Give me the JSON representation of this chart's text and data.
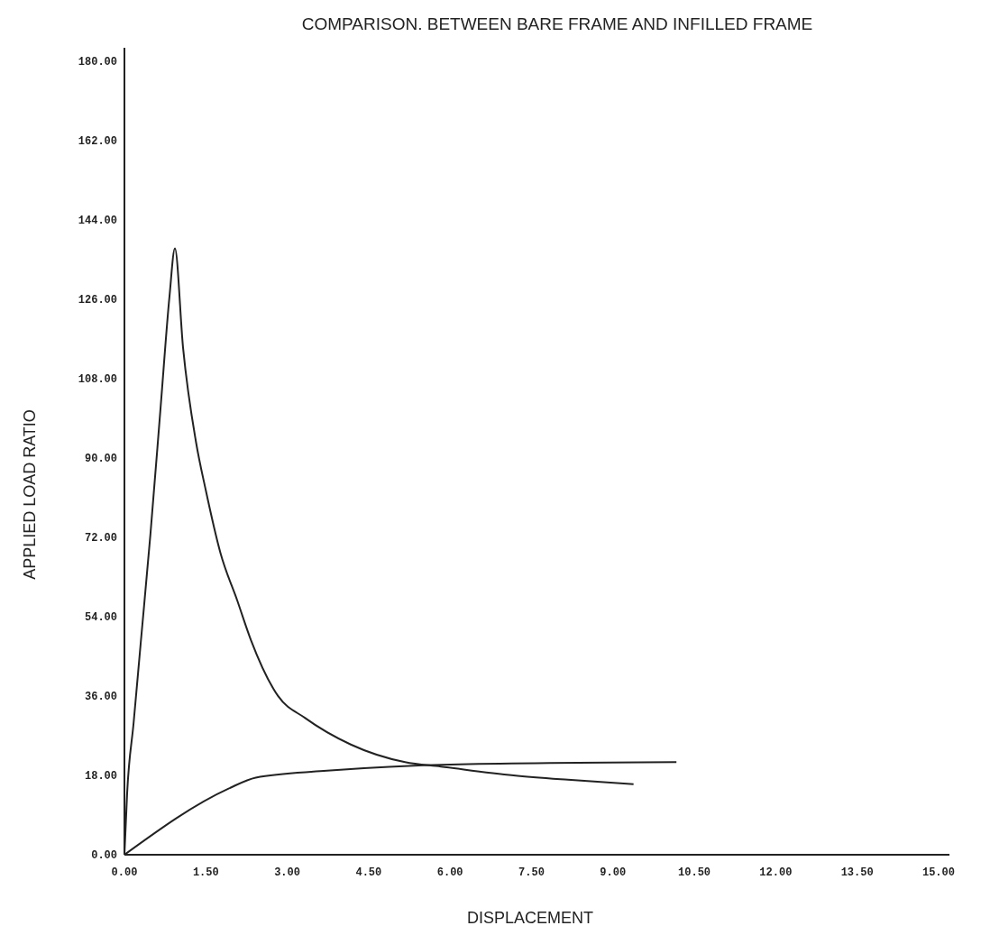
{
  "chart_data": {
    "type": "line",
    "title": "COMPARISON. BETWEEN BARE FRAME AND INFILLED FRAME",
    "xlabel": "DISPLACEMENT",
    "ylabel": "APPLIED LOAD RATIO",
    "series": [
      {
        "color": "#222222",
        "x": [
          0,
          0.05,
          0.17,
          0.3,
          0.48,
          0.67,
          0.83,
          0.93,
          1.08,
          1.32,
          1.5,
          1.77,
          2.08,
          2.33,
          2.83,
          3.33,
          4.17,
          5.17,
          5.83,
          7.17,
          8.17,
          9.38
        ],
        "values": [
          0,
          14,
          30,
          48,
          72.8,
          102,
          126.6,
          137.5,
          115,
          93.5,
          82.6,
          68.4,
          57.6,
          48.7,
          36,
          31,
          25,
          21,
          20,
          18,
          17,
          16
        ]
      },
      {
        "color": "#222222",
        "x": [
          0,
          1.92,
          2.42,
          3.67,
          6.17,
          10.17
        ],
        "values": [
          0,
          15,
          17.5,
          19,
          20.5,
          21
        ]
      }
    ],
    "xlim": [
      0,
      15.2
    ],
    "ylim": [
      0,
      183
    ],
    "xticks": [
      {
        "value": 0,
        "label": "0.00"
      },
      {
        "value": 1.5,
        "label": "1.50"
      },
      {
        "value": 3,
        "label": "3.00"
      },
      {
        "value": 4.5,
        "label": "4.50"
      },
      {
        "value": 6,
        "label": "6.00"
      },
      {
        "value": 7.5,
        "label": "7.50"
      },
      {
        "value": 9,
        "label": "9.00"
      },
      {
        "value": 10.5,
        "label": "10.50"
      },
      {
        "value": 12,
        "label": "12.00"
      },
      {
        "value": 13.5,
        "label": "13.50"
      },
      {
        "value": 15,
        "label": "15.00"
      }
    ],
    "yticks": [
      {
        "value": 0,
        "label": "0.00"
      },
      {
        "value": 18,
        "label": "18.00"
      },
      {
        "value": 36,
        "label": "36.00"
      },
      {
        "value": 54,
        "label": "54.00"
      },
      {
        "value": 72,
        "label": "72.00"
      },
      {
        "value": 90,
        "label": "90.00"
      },
      {
        "value": 108,
        "label": "108.00"
      },
      {
        "value": 126,
        "label": "126.00"
      },
      {
        "value": 144,
        "label": "144.00"
      },
      {
        "value": 162,
        "label": "162.00"
      },
      {
        "value": 180,
        "label": "180.00"
      }
    ],
    "grid": false,
    "marker": "none",
    "line_style": "solid"
  }
}
